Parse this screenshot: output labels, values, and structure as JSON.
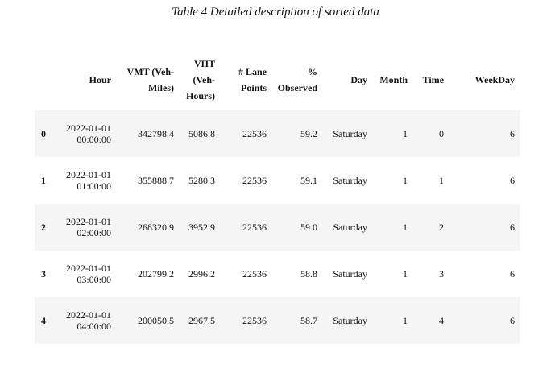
{
  "caption": "Table 4 Detailed description of sorted data",
  "columns": {
    "hour": "Hour",
    "vmt": "VMT (Veh-Miles)",
    "vht": "VHT (Veh-Hours)",
    "lane_points": "# Lane Points",
    "observed": "% Observed",
    "day": "Day",
    "month": "Month",
    "time": "Time",
    "weekday": "WeekDay"
  },
  "rows": [
    {
      "index": "0",
      "hour_date": "2022-01-01",
      "hour_time": "00:00:00",
      "vmt": "342798.4",
      "vht": "5086.8",
      "lane_points": "22536",
      "observed": "59.2",
      "day": "Saturday",
      "month": "1",
      "time": "0",
      "weekday": "6"
    },
    {
      "index": "1",
      "hour_date": "2022-01-01",
      "hour_time": "01:00:00",
      "vmt": "355888.7",
      "vht": "5280.3",
      "lane_points": "22536",
      "observed": "59.1",
      "day": "Saturday",
      "month": "1",
      "time": "1",
      "weekday": "6"
    },
    {
      "index": "2",
      "hour_date": "2022-01-01",
      "hour_time": "02:00:00",
      "vmt": "268320.9",
      "vht": "3952.9",
      "lane_points": "22536",
      "observed": "59.0",
      "day": "Saturday",
      "month": "1",
      "time": "2",
      "weekday": "6"
    },
    {
      "index": "3",
      "hour_date": "2022-01-01",
      "hour_time": "03:00:00",
      "vmt": "202799.2",
      "vht": "2996.2",
      "lane_points": "22536",
      "observed": "58.8",
      "day": "Saturday",
      "month": "1",
      "time": "3",
      "weekday": "6"
    },
    {
      "index": "4",
      "hour_date": "2022-01-01",
      "hour_time": "04:00:00",
      "vmt": "200050.5",
      "vht": "2967.5",
      "lane_points": "22536",
      "observed": "58.7",
      "day": "Saturday",
      "month": "1",
      "time": "4",
      "weekday": "6"
    }
  ]
}
